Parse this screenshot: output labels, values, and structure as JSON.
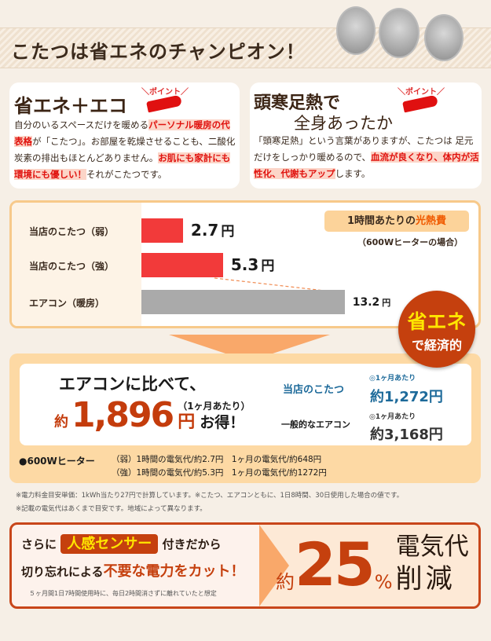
{
  "header": {
    "title": "こたつは省エネのチャンピオン！"
  },
  "card_left": {
    "point": "＼ポイント／",
    "title": "省エネ＋エコ",
    "segments": [
      {
        "t": "自分のいるスペースだけを暖める",
        "hl": false
      },
      {
        "t": "パーソナル暖房の代表格",
        "hl": true
      },
      {
        "t": "が「こたつ」。お部屋を乾燥させることも、二酸化炭素の排出もほとんどありません。",
        "hl": false
      },
      {
        "t": "お肌にも家計にも環境にも優しい！",
        "hl": true
      },
      {
        "t": "それがこたつです。",
        "hl": false
      }
    ]
  },
  "card_right": {
    "point": "＼ポイント／",
    "title_line1": "頭寒足熱で",
    "title_line2": "全身あったか",
    "segments": [
      {
        "t": "「頭寒足熱」という言葉がありますが、こたつは 足元だけをしっかり暖めるので、",
        "hl": false
      },
      {
        "t": "血流が良くなり、体内が活性化、代謝もアップ",
        "hl": true
      },
      {
        "t": "します。",
        "hl": false
      }
    ]
  },
  "chart": {
    "legend_prefix": "1時間あたりの",
    "legend_highlight": "光熱費",
    "legend_note": "（600Wヒーターの場合）",
    "unit": "円",
    "rows": [
      {
        "label": "当店のこたつ（弱）",
        "value": 2.7,
        "display": "2.7",
        "color": "#f23a3a"
      },
      {
        "label": "当店のこたつ（強）",
        "value": 5.3,
        "display": "5.3",
        "color": "#f23a3a"
      },
      {
        "label": "エアコン（暖房）",
        "value": 13.2,
        "display": "13.2",
        "color": "#aaaaaa"
      }
    ]
  },
  "badge": {
    "line1": "省エネ",
    "line2": "で経済的"
  },
  "savings": {
    "compare": "エアコンに比べて、",
    "approx": "約",
    "amount": "1,896",
    "yen": "円",
    "per_month": "（1ヶ月あたり）",
    "deal": "お得！",
    "ours_label": "当店のこたつ",
    "ours_note": "◎1ヶ月あたり",
    "ours_value": "約1,272円",
    "ac_label": "一般的なエアコン",
    "ac_note": "◎1ヶ月あたり",
    "ac_value": "約3,168円",
    "heater_label": "●600Wヒーター",
    "heater_line1": "（弱）1時間の電気代/約2.7円　1ヶ月の電気代/約648円",
    "heater_line2": "（強）1時間の電気代/約5.3円　1ヶ月の電気代/約1272円"
  },
  "notes": [
    "※電力料金目安単価：1kWh当たり27円で計算しています。※こたつ、エアコンともに、1日8時間、30日使用した場合の値です。",
    "※記載の電気代はあくまで目安です。地域によって異なります。"
  ],
  "sensor": {
    "pre": "さらに",
    "highlight": "人感センサー",
    "post": "付きだから",
    "line2_pre": "切り忘れによる",
    "line2_hl": "不要な電力をカット！",
    "footnote": "５ヶ月間1日7時間使用時に、毎日2時間消さずに離れていたと想定",
    "approx": "約",
    "percent": "25",
    "percent_sign": "%",
    "label1": "電気代",
    "label2": "削減"
  }
}
